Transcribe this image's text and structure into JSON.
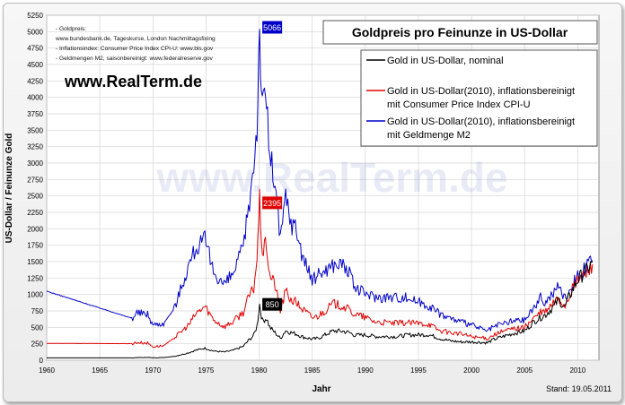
{
  "chart_data": {
    "type": "line",
    "title": "Goldpreis pro Feinunze in US-Dollar",
    "xlabel": "Jahr",
    "ylabel": "US-Dollar / Feinunze Gold",
    "xlim": [
      1960,
      2012
    ],
    "ylim": [
      0,
      5250
    ],
    "x_ticks": [
      1960,
      1965,
      1970,
      1975,
      1980,
      1985,
      1990,
      1995,
      2000,
      2005,
      2010
    ],
    "y_ticks": [
      0,
      250,
      500,
      750,
      1000,
      1250,
      1500,
      1750,
      2000,
      2250,
      2500,
      2750,
      3000,
      3250,
      3500,
      3750,
      4000,
      4250,
      4500,
      4750,
      5000,
      5250
    ],
    "grid": true,
    "legend_position": "top-right",
    "series": [
      {
        "name": "Gold in US-Dollar, nominal",
        "color": "#000000",
        "x": [
          1960,
          1968,
          1968.5,
          1969.5,
          1970,
          1971,
          1972,
          1973,
          1973.5,
          1974,
          1974.9,
          1975.7,
          1976.7,
          1977.5,
          1978.5,
          1979,
          1979.5,
          1979.8,
          1980.05,
          1980.3,
          1980.7,
          1981,
          1981.5,
          1982,
          1982.5,
          1983,
          1983.5,
          1984,
          1985,
          1985.5,
          1986,
          1987,
          1987.9,
          1988.5,
          1989,
          1990,
          1991,
          1993,
          1994,
          1996,
          1997,
          1998,
          1999,
          2000,
          2001,
          2001.5,
          2002,
          2003,
          2004,
          2005,
          2006,
          2006.5,
          2007,
          2007.8,
          2008.2,
          2008.8,
          2009,
          2010,
          2011,
          2011.4
        ],
        "y": [
          35,
          35,
          40,
          42,
          36,
          40,
          58,
          97,
          120,
          150,
          183,
          140,
          125,
          148,
          210,
          300,
          380,
          520,
          850,
          600,
          640,
          500,
          420,
          330,
          450,
          420,
          400,
          360,
          320,
          330,
          368,
          447,
          440,
          420,
          380,
          384,
          360,
          360,
          384,
          388,
          331,
          294,
          279,
          279,
          271,
          265,
          310,
          363,
          409,
          444,
          603,
          650,
          695,
          830,
          920,
          800,
          900,
          1225,
          1400,
          1500
        ]
      },
      {
        "name": "Gold in US-Dollar(2010), inflationsbereinigt mit Consumer Price Index CPI-U",
        "color": "#e00000",
        "x": [
          1960,
          1968,
          1968.5,
          1969.5,
          1970,
          1971,
          1972,
          1973,
          1973.5,
          1974,
          1974.9,
          1975.7,
          1976.7,
          1977.5,
          1978.5,
          1979,
          1979.5,
          1979.8,
          1980.05,
          1980.3,
          1980.7,
          1981,
          1981.5,
          1982,
          1982.5,
          1983,
          1983.5,
          1984,
          1985,
          1985.5,
          1986,
          1987,
          1987.9,
          1988.5,
          1989,
          1990,
          1991,
          1993,
          1994,
          1996,
          1997,
          1998,
          1999,
          2000,
          2001,
          2001.5,
          2002,
          2003,
          2004,
          2005,
          2006,
          2006.5,
          2007,
          2007.8,
          2008.2,
          2008.8,
          2009,
          2010,
          2011,
          2011.4
        ],
        "y": [
          256,
          252,
          270,
          260,
          205,
          220,
          340,
          480,
          560,
          700,
          820,
          620,
          510,
          580,
          730,
          950,
          1100,
          1560,
          2395,
          1650,
          1750,
          1300,
          1150,
          750,
          1050,
          920,
          880,
          790,
          650,
          670,
          730,
          860,
          820,
          760,
          700,
          650,
          580,
          560,
          570,
          550,
          450,
          420,
          400,
          360,
          340,
          330,
          380,
          440,
          480,
          500,
          660,
          720,
          740,
          880,
          940,
          820,
          920,
          1225,
          1360,
          1460
        ]
      },
      {
        "name": "Gold in US-Dollar(2010), inflationsbereinigt mit Geldmenge M2",
        "color": "#0000c8",
        "x": [
          1960,
          1968,
          1968.5,
          1969.5,
          1970,
          1971,
          1972,
          1973,
          1973.5,
          1974,
          1974.9,
          1975.7,
          1976.7,
          1977.5,
          1978.5,
          1979,
          1979.5,
          1979.8,
          1980.05,
          1980.3,
          1980.7,
          1981,
          1981.5,
          1982,
          1982.5,
          1983,
          1983.5,
          1984,
          1985,
          1985.5,
          1986,
          1987,
          1987.9,
          1988.5,
          1989,
          1990,
          1991,
          1993,
          1994,
          1996,
          1997,
          1998,
          1999,
          2000,
          2001,
          2001.5,
          2002,
          2003,
          2004,
          2005,
          2006,
          2006.5,
          2007,
          2007.8,
          2008.2,
          2008.8,
          2009,
          2010,
          2011,
          2011.4
        ],
        "y": [
          1050,
          640,
          720,
          700,
          540,
          560,
          780,
          1270,
          1500,
          1700,
          1820,
          1350,
          1150,
          1300,
          1700,
          2300,
          3000,
          3600,
          5066,
          3800,
          4000,
          3100,
          2700,
          1800,
          2500,
          2100,
          2000,
          1650,
          1200,
          1300,
          1350,
          1450,
          1470,
          1320,
          1100,
          1020,
          960,
          960,
          950,
          830,
          710,
          640,
          580,
          540,
          470,
          440,
          500,
          560,
          600,
          610,
          830,
          950,
          880,
          1050,
          1120,
          950,
          1000,
          1300,
          1440,
          1520
        ]
      }
    ],
    "annotations": [
      {
        "text": "5066",
        "x": 1980.05,
        "y": 5066,
        "color": "#0000c8"
      },
      {
        "text": "2395",
        "x": 1980.05,
        "y": 2395,
        "color": "#e00000"
      },
      {
        "text": "850",
        "x": 1980.05,
        "y": 850,
        "color": "#000000"
      }
    ]
  },
  "sources": {
    "lines": [
      "- Goldpreis:",
      "   www.bundesbank.de, Tageskurse, London Nachmittagsfixing",
      "- Inflationsindex: Consumer Price Index CPI-U: www.bls.gov",
      "- Geldmengen M2, saisonbereinigt: www.federalreserve.gov"
    ]
  },
  "brand": {
    "site": "www.RealTerm.de",
    "watermark": "www.RealTerm.de"
  },
  "footer": {
    "stand": "Stand: 19.05.2011"
  }
}
